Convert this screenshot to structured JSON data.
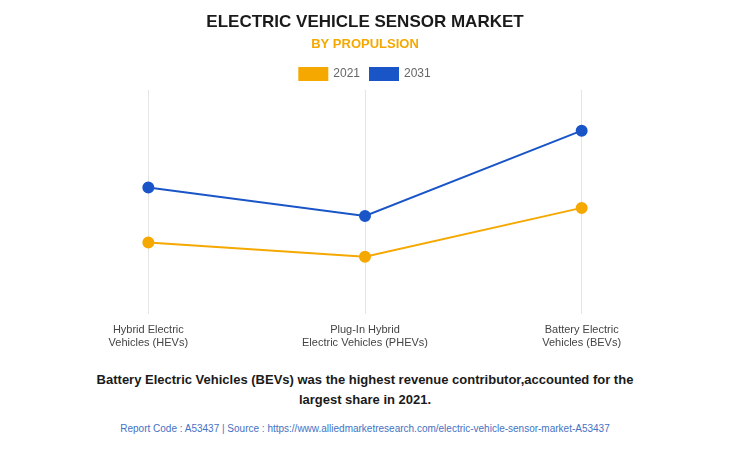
{
  "chart_data": {
    "type": "line",
    "title": "ELECTRIC VEHICLE SENSOR MARKET",
    "subtitle": "BY PROPULSION",
    "categories": [
      "Hybrid Electric\nVehicles (HEVs)",
      "Plug-In Hybrid\nElectric Vehicles (PHEVs)",
      "Battery Electric\nVehicles (BEVs)"
    ],
    "series": [
      {
        "name": "2021",
        "color": "#F5A800",
        "values": [
          35,
          28,
          52
        ]
      },
      {
        "name": "2031",
        "color": "#1A55C8",
        "values": [
          62,
          48,
          90
        ]
      }
    ],
    "ylim": [
      0,
      110
    ],
    "grid": true,
    "tick_labels": "x",
    "marker": "circle",
    "annotations": [
      "Battery Electric Vehicles (BEVs) was the highest revenue contributor,accounted for the\nlargest share in 2021.",
      "Report Code : A53437  |  Source : https://www.alliedmarketresearch.com/electric-vehicle-sensor-market-A53437"
    ]
  }
}
